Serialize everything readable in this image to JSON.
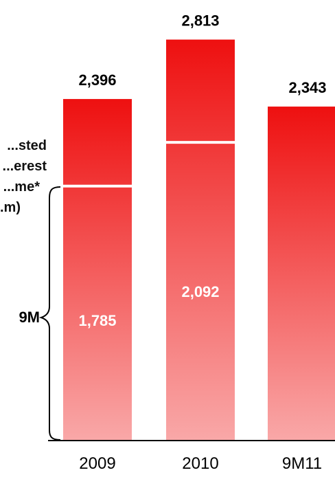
{
  "chart_data": {
    "type": "bar",
    "ylabel_lines": [
      "...sted",
      "...erest",
      "...me*",
      "...m)"
    ],
    "categories": [
      "2009",
      "2010",
      "9M11"
    ],
    "values": [
      2396,
      2813,
      2343
    ],
    "value_labels": [
      "2,396",
      "2,813",
      "2,343"
    ],
    "nine_month_values": [
      1785,
      2092,
      null
    ],
    "nine_month_labels": [
      "1,785",
      "2,092",
      ""
    ],
    "brace_label": "9M",
    "colors": {
      "bar_top": "#ee1010",
      "bar_bottom": "#f9a8a8",
      "marker_line": "#ffffff"
    },
    "grid": false,
    "legend": "none"
  }
}
